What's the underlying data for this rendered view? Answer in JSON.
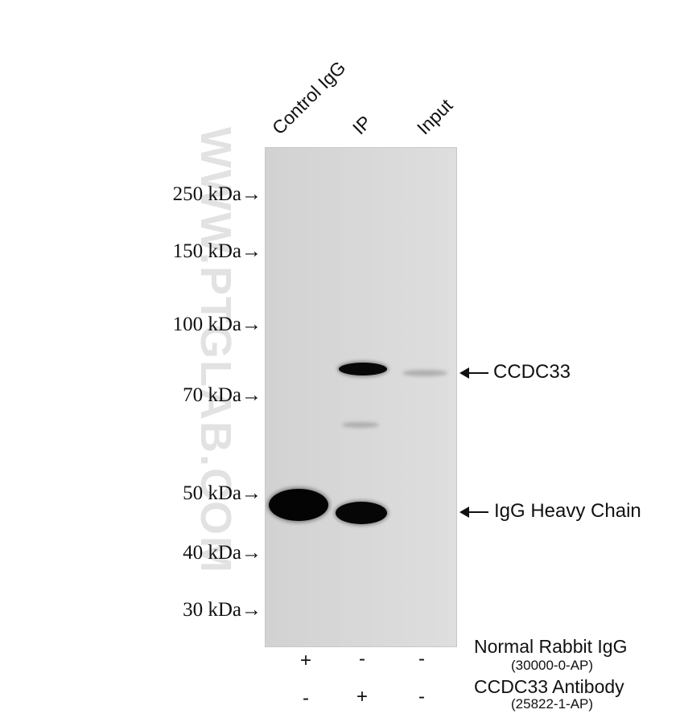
{
  "lanes": [
    "Control IgG",
    "IP",
    "Input"
  ],
  "markers": [
    "250 kDa→",
    "150 kDa→",
    "100 kDa→",
    "70 kDa→",
    "50 kDa→",
    "40 kDa→",
    "30 kDa→"
  ],
  "watermark": "WWW.PTGLAB.COM",
  "annotations": {
    "target": "CCDC33",
    "heavy_chain": "IgG Heavy Chain"
  },
  "reagents": [
    {
      "name": "Normal Rabbit IgG",
      "catalog": "(30000-0-AP)",
      "signs": [
        "+",
        "-",
        "-"
      ]
    },
    {
      "name": "CCDC33 Antibody",
      "catalog": "(25822-1-AP)",
      "signs": [
        "-",
        "+",
        "-"
      ]
    }
  ],
  "colors": {
    "band": "#050505",
    "membrane": "#d8d8d8"
  }
}
